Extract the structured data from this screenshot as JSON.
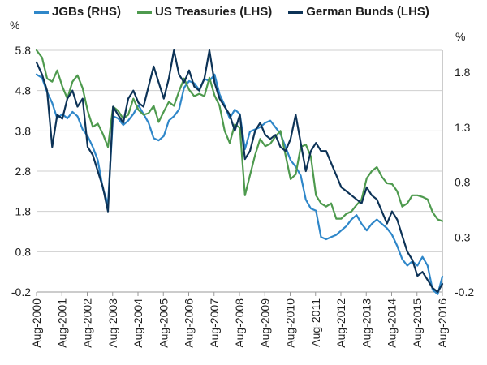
{
  "chart_data": {
    "type": "line",
    "title": "",
    "left_axis": {
      "unit": "%",
      "ticks": [
        -0.2,
        0.8,
        1.8,
        2.8,
        3.8,
        4.8,
        5.8
      ],
      "tick_labels": [
        "-0.2",
        "0.8",
        "1.8",
        "2.8",
        "3.8",
        "4.8",
        "5.8"
      ],
      "range": [
        -0.2,
        5.8
      ]
    },
    "right_axis": {
      "unit": "%",
      "ticks": [
        -0.2,
        0.3,
        0.8,
        1.3,
        1.8
      ],
      "tick_labels": [
        "-0.2",
        "0.3",
        "0.8",
        "1.3",
        "1.8"
      ],
      "range": [
        -0.2,
        2.0
      ]
    },
    "x_axis": {
      "range": [
        2000.583,
        2016.583
      ],
      "ticks": [
        2000.583,
        2001.583,
        2002.583,
        2003.583,
        2004.583,
        2005.583,
        2006.583,
        2007.583,
        2008.583,
        2009.583,
        2010.583,
        2011.583,
        2012.583,
        2013.583,
        2014.583,
        2015.583,
        2016.583
      ],
      "tick_labels": [
        "Aug-2000",
        "Aug-2001",
        "Aug-2002",
        "Aug-2003",
        "Aug-2004",
        "Aug-2005",
        "Aug-2006",
        "Aug-2007",
        "Aug-2008",
        "Aug-2009",
        "Aug-2010",
        "Aug-2011",
        "Aug-2012",
        "Aug-2013",
        "Aug-2014",
        "Aug-2015",
        "Aug-2016"
      ]
    },
    "series": [
      {
        "name": "JGBs (RHS)",
        "axis": "right",
        "color": "#2f87c9",
        "x": [
          2000.583,
          2000.8,
          2001.0,
          2001.2,
          2001.4,
          2001.6,
          2001.8,
          2002.0,
          2002.2,
          2002.4,
          2002.6,
          2002.8,
          2003.0,
          2003.2,
          2003.4,
          2003.6,
          2003.8,
          2004.0,
          2004.2,
          2004.4,
          2004.6,
          2004.8,
          2005.0,
          2005.2,
          2005.4,
          2005.6,
          2005.8,
          2006.0,
          2006.2,
          2006.4,
          2006.6,
          2006.8,
          2007.0,
          2007.2,
          2007.4,
          2007.6,
          2007.8,
          2008.0,
          2008.2,
          2008.4,
          2008.6,
          2008.8,
          2009.0,
          2009.2,
          2009.4,
          2009.6,
          2009.8,
          2010.0,
          2010.2,
          2010.4,
          2010.6,
          2010.8,
          2011.0,
          2011.2,
          2011.4,
          2011.6,
          2011.8,
          2012.0,
          2012.2,
          2012.4,
          2012.6,
          2012.8,
          2013.0,
          2013.2,
          2013.4,
          2013.6,
          2013.8,
          2014.0,
          2014.2,
          2014.4,
          2014.6,
          2014.8,
          2015.0,
          2015.2,
          2015.4,
          2015.6,
          2015.8,
          2016.0,
          2016.2,
          2016.4,
          2016.583
        ],
        "y": [
          1.78,
          1.75,
          1.62,
          1.52,
          1.38,
          1.42,
          1.38,
          1.44,
          1.4,
          1.28,
          1.22,
          1.12,
          1.0,
          0.74,
          0.6,
          1.4,
          1.38,
          1.32,
          1.36,
          1.42,
          1.5,
          1.42,
          1.34,
          1.2,
          1.18,
          1.22,
          1.36,
          1.4,
          1.46,
          1.66,
          1.72,
          1.7,
          1.64,
          1.74,
          1.72,
          1.78,
          1.6,
          1.5,
          1.38,
          1.46,
          1.42,
          1.1,
          1.26,
          1.28,
          1.3,
          1.34,
          1.36,
          1.3,
          1.24,
          1.12,
          1.0,
          0.94,
          0.86,
          0.64,
          0.56,
          0.54,
          0.3,
          0.28,
          0.3,
          0.32,
          0.36,
          0.4,
          0.46,
          0.5,
          0.42,
          0.36,
          0.42,
          0.46,
          0.42,
          0.38,
          0.32,
          0.22,
          0.1,
          0.04,
          0.08,
          0.04,
          0.12,
          0.04,
          -0.18,
          -0.22,
          -0.06
        ]
      },
      {
        "name": "US Treasuries (LHS)",
        "axis": "left",
        "color": "#4e9a4e",
        "x": [
          2000.583,
          2000.8,
          2001.0,
          2001.2,
          2001.4,
          2001.6,
          2001.8,
          2002.0,
          2002.2,
          2002.4,
          2002.6,
          2002.8,
          2003.0,
          2003.2,
          2003.4,
          2003.6,
          2003.8,
          2004.0,
          2004.2,
          2004.4,
          2004.6,
          2004.8,
          2005.0,
          2005.2,
          2005.4,
          2005.6,
          2005.8,
          2006.0,
          2006.2,
          2006.4,
          2006.6,
          2006.8,
          2007.0,
          2007.2,
          2007.4,
          2007.6,
          2007.8,
          2008.0,
          2008.2,
          2008.4,
          2008.6,
          2008.8,
          2009.0,
          2009.2,
          2009.4,
          2009.6,
          2009.8,
          2010.0,
          2010.2,
          2010.4,
          2010.6,
          2010.8,
          2011.0,
          2011.2,
          2011.4,
          2011.6,
          2011.8,
          2012.0,
          2012.2,
          2012.4,
          2012.6,
          2012.8,
          2013.0,
          2013.2,
          2013.4,
          2013.6,
          2013.8,
          2014.0,
          2014.2,
          2014.4,
          2014.6,
          2014.8,
          2015.0,
          2015.2,
          2015.4,
          2015.6,
          2015.8,
          2016.0,
          2016.2,
          2016.4,
          2016.583
        ],
        "y": [
          5.8,
          5.62,
          5.1,
          5.02,
          5.3,
          4.9,
          4.6,
          5.02,
          5.18,
          4.86,
          4.3,
          3.9,
          3.98,
          3.72,
          3.4,
          4.4,
          4.3,
          4.1,
          4.2,
          4.6,
          4.32,
          4.2,
          4.24,
          4.42,
          4.02,
          4.28,
          4.52,
          4.42,
          4.78,
          5.1,
          4.82,
          4.66,
          4.72,
          4.66,
          5.12,
          4.68,
          4.42,
          3.8,
          3.5,
          3.96,
          3.88,
          2.2,
          2.7,
          3.2,
          3.6,
          3.42,
          3.48,
          3.66,
          3.8,
          3.2,
          2.6,
          2.72,
          3.4,
          3.46,
          3.16,
          2.2,
          2.0,
          1.92,
          2.0,
          1.62,
          1.62,
          1.74,
          1.8,
          1.96,
          2.1,
          2.62,
          2.8,
          2.9,
          2.66,
          2.5,
          2.48,
          2.3,
          1.92,
          2.0,
          2.2,
          2.2,
          2.16,
          2.1,
          1.78,
          1.6,
          1.56
        ]
      },
      {
        "name": "German Bunds (LHS)",
        "axis": "left",
        "color": "#0d3357",
        "x": [
          2000.583,
          2000.8,
          2001.0,
          2001.2,
          2001.4,
          2001.6,
          2001.8,
          2002.0,
          2002.2,
          2002.4,
          2002.6,
          2002.8,
          2003.0,
          2003.2,
          2003.4,
          2003.6,
          2003.8,
          2004.0,
          2004.2,
          2004.4,
          2004.6,
          2004.8,
          2005.0,
          2005.2,
          2005.4,
          2005.6,
          2005.8,
          2006.0,
          2006.2,
          2006.4,
          2006.6,
          2006.8,
          2007.0,
          2007.2,
          2007.4,
          2007.6,
          2007.8,
          2008.0,
          2008.2,
          2008.4,
          2008.6,
          2008.8,
          2009.0,
          2009.2,
          2009.4,
          2009.6,
          2009.8,
          2010.0,
          2010.2,
          2010.4,
          2010.6,
          2010.8,
          2011.0,
          2011.2,
          2011.4,
          2011.6,
          2011.8,
          2012.0,
          2012.2,
          2012.4,
          2012.6,
          2012.8,
          2013.0,
          2013.2,
          2013.4,
          2013.6,
          2013.8,
          2014.0,
          2014.2,
          2014.4,
          2014.6,
          2014.8,
          2015.0,
          2015.2,
          2015.4,
          2015.6,
          2015.8,
          2016.0,
          2016.2,
          2016.4,
          2016.583
        ],
        "y": [
          5.5,
          5.2,
          4.8,
          3.4,
          4.2,
          4.1,
          4.6,
          4.8,
          4.4,
          4.6,
          3.4,
          3.2,
          2.8,
          2.4,
          1.8,
          4.4,
          4.2,
          4.0,
          4.6,
          4.8,
          4.5,
          4.4,
          4.9,
          5.4,
          5.0,
          4.6,
          5.1,
          5.8,
          5.2,
          5.0,
          5.3,
          4.9,
          4.8,
          5.1,
          5.8,
          5.0,
          4.6,
          4.4,
          4.2,
          3.8,
          4.2,
          3.1,
          3.3,
          3.8,
          4.0,
          3.7,
          3.6,
          3.7,
          3.4,
          3.3,
          3.6,
          4.2,
          3.5,
          2.8,
          3.3,
          3.5,
          3.3,
          3.3,
          3.0,
          2.7,
          2.4,
          2.3,
          2.2,
          2.1,
          2.0,
          2.4,
          2.2,
          2.1,
          1.8,
          1.5,
          1.8,
          1.6,
          1.2,
          0.8,
          0.6,
          0.2,
          0.3,
          0.1,
          -0.1,
          -0.2,
          0.0
        ]
      }
    ]
  }
}
